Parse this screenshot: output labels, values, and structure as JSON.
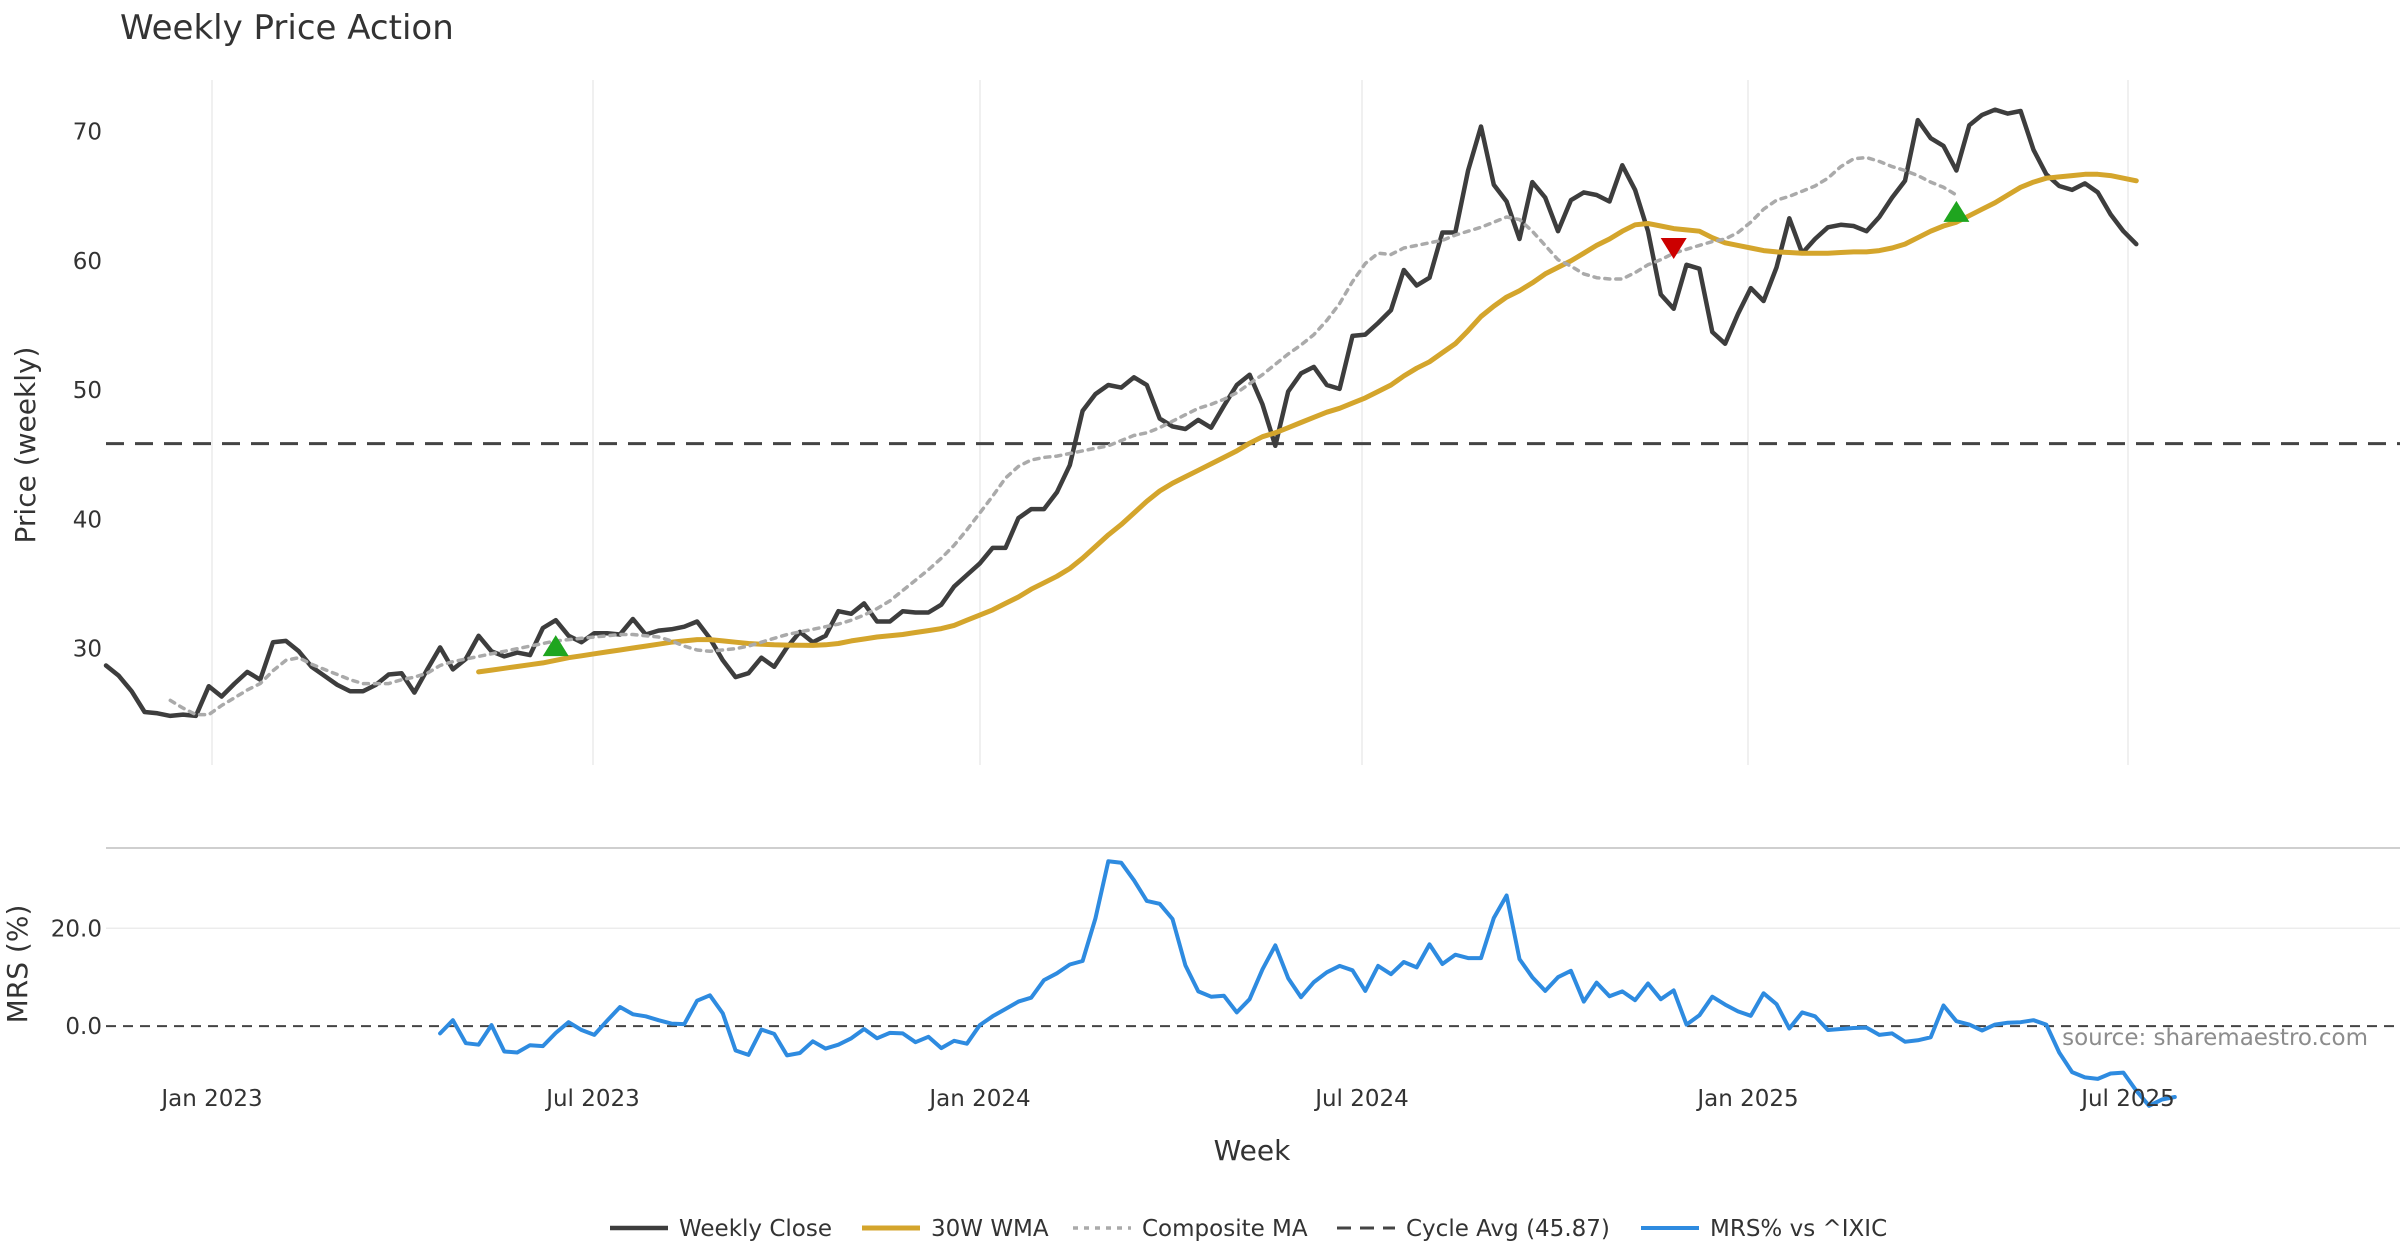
{
  "chart_data": {
    "type": "line",
    "title": "Weekly Price Action",
    "xlabel": "Week",
    "source": "source: sharemaestro.com",
    "x_ticks": [
      "Jan 2023",
      "Jul 2023",
      "Jan 2024",
      "Jul 2024",
      "Jan 2025",
      "Jul 2025"
    ],
    "price_panel": {
      "ylabel": "Price (weekly)",
      "ylim": [
        21,
        74
      ],
      "y_ticks": [
        30,
        40,
        50,
        60,
        70
      ],
      "cycle_avg": 45.87
    },
    "mrs_panel": {
      "ylabel": "MRS (%)",
      "ylim": [
        -10,
        36
      ],
      "y_ticks": [
        0.0,
        20.0
      ],
      "y_tick_labels": [
        "0.0",
        "20.0"
      ],
      "zero_line": 0
    },
    "series": [
      {
        "name": "Weekly Close",
        "color": "#3d3d3d",
        "start_week": 0,
        "values": [
          28.7,
          27.9,
          26.7,
          25.1,
          25,
          24.8,
          24.9,
          24.8,
          27.1,
          26.3,
          27.3,
          28.2,
          27.6,
          30.5,
          30.6,
          29.8,
          28.6,
          27.9,
          27.2,
          26.7,
          26.7,
          27.2,
          28.0,
          28.1,
          26.6,
          28.4,
          30.1,
          28.4,
          29.2,
          31.0,
          29.8,
          29.4,
          29.7,
          29.5,
          31.6,
          32.2,
          31.0,
          30.5,
          31.2,
          31.2,
          31.1,
          32.3,
          31.1,
          31.4,
          31.5,
          31.7,
          32.1,
          30.8,
          29.1,
          27.8,
          28.1,
          29.3,
          28.6,
          30.1,
          31.3,
          30.5,
          31.0,
          32.9,
          32.7,
          33.5,
          32.1,
          32.1,
          32.9,
          32.8,
          32.8,
          33.4,
          34.8,
          35.7,
          36.6,
          37.8,
          37.8,
          40.1,
          40.8,
          40.8,
          42.1,
          44.2,
          48.4,
          49.7,
          50.4,
          50.2,
          51.0,
          50.4,
          47.8,
          47.2,
          47.0,
          47.7,
          47.1,
          48.8,
          50.4,
          51.2,
          48.9,
          45.7,
          49.9,
          51.3,
          51.8,
          50.4,
          50.1,
          54.2,
          54.3,
          55.2,
          56.2,
          59.3,
          58.1,
          58.7,
          62.2,
          62.2,
          67.0,
          70.4,
          65.9,
          64.6,
          61.7,
          66.1,
          64.9,
          62.3,
          64.7,
          65.3,
          65.1,
          64.6,
          67.4,
          65.5,
          62.3,
          57.4,
          56.3,
          59.7,
          59.4,
          54.5,
          53.6,
          55.9,
          57.9,
          56.9,
          59.5,
          63.3,
          60.6,
          61.7,
          62.6,
          62.8,
          62.7,
          62.3,
          63.4,
          64.9,
          66.2,
          70.9,
          69.5,
          68.9,
          67.0,
          70.5,
          71.3,
          71.7,
          71.4,
          71.6,
          68.6,
          66.7,
          65.8,
          65.5,
          66.0,
          65.3,
          63.6,
          62.3,
          61.3
        ]
      },
      {
        "name": "30W WMA",
        "color": "#d4a52c",
        "start_week": 29,
        "values": [
          28.2,
          28.34,
          28.48,
          28.62,
          28.76,
          28.9,
          29.1,
          29.3,
          29.45,
          29.6,
          29.75,
          29.9,
          30.05,
          30.2,
          30.35,
          30.5,
          30.6,
          30.7,
          30.7,
          30.6,
          30.5,
          30.4,
          30.35,
          30.3,
          30.28,
          30.26,
          30.25,
          30.3,
          30.4,
          30.6,
          30.75,
          30.9,
          31.0,
          31.1,
          31.25,
          31.4,
          31.55,
          31.8,
          32.2,
          32.6,
          33.0,
          33.5,
          34.0,
          34.6,
          35.1,
          35.6,
          36.2,
          37.0,
          37.9,
          38.8,
          39.6,
          40.5,
          41.4,
          42.2,
          42.8,
          43.3,
          43.8,
          44.3,
          44.8,
          45.3,
          45.9,
          46.4,
          46.7,
          47.1,
          47.5,
          47.9,
          48.3,
          48.6,
          49.0,
          49.4,
          49.9,
          50.4,
          51.1,
          51.7,
          52.2,
          52.9,
          53.6,
          54.6,
          55.7,
          56.5,
          57.2,
          57.7,
          58.3,
          59.0,
          59.5,
          60.0,
          60.6,
          61.2,
          61.7,
          62.3,
          62.8,
          62.9,
          62.7,
          62.5,
          62.4,
          62.3,
          61.8,
          61.4,
          61.2,
          61.0,
          60.8,
          60.7,
          60.65,
          60.6,
          60.6,
          60.6,
          60.65,
          60.7,
          60.7,
          60.8,
          61.0,
          61.3,
          61.8,
          62.3,
          62.7,
          63.0,
          63.5,
          64.0,
          64.5,
          65.1,
          65.7,
          66.1,
          66.4,
          66.5,
          66.6,
          66.7,
          66.7,
          66.6,
          66.4,
          66.2
        ]
      },
      {
        "name": "Composite MA",
        "color": "#aaaaaa",
        "start_week": 5,
        "values": [
          26.0,
          25.4,
          24.9,
          24.9,
          25.6,
          26.2,
          26.8,
          27.3,
          28.3,
          29.1,
          29.3,
          28.8,
          28.4,
          28.0,
          27.6,
          27.3,
          27.3,
          27.3,
          27.6,
          27.8,
          28.1,
          28.7,
          29.0,
          29.2,
          29.4,
          29.6,
          29.8,
          30.0,
          30.2,
          30.4,
          30.6,
          30.7,
          30.8,
          30.9,
          31.0,
          31.1,
          31.1,
          31.0,
          30.9,
          30.6,
          30.2,
          29.9,
          29.8,
          29.9,
          30.0,
          30.2,
          30.5,
          30.8,
          31.1,
          31.3,
          31.5,
          31.7,
          31.9,
          32.2,
          32.6,
          33.1,
          33.7,
          34.5,
          35.3,
          36.1,
          37.0,
          38.0,
          39.2,
          40.5,
          41.8,
          43.2,
          44.1,
          44.6,
          44.8,
          44.9,
          45.1,
          45.3,
          45.5,
          45.7,
          46.1,
          46.5,
          46.7,
          47.1,
          47.6,
          48.1,
          48.6,
          48.9,
          49.3,
          49.8,
          50.5,
          51.2,
          52.0,
          52.8,
          53.5,
          54.3,
          55.4,
          56.7,
          58.4,
          59.8,
          60.6,
          60.5,
          61.0,
          61.2,
          61.4,
          61.6,
          62.0,
          62.3,
          62.6,
          63.0,
          63.4,
          63.2,
          62.3,
          61.2,
          60.1,
          59.6,
          59.0,
          58.7,
          58.6,
          58.6,
          59.1,
          59.7,
          60.1,
          60.6,
          60.9,
          61.2,
          61.5,
          61.7,
          62.2,
          63.0,
          64.0,
          64.7,
          65.0,
          65.4,
          65.8,
          66.4,
          67.3,
          67.9,
          68.0,
          67.7,
          67.3,
          67.0,
          66.6,
          66.1,
          65.7,
          65.1
        ]
      },
      {
        "name": "Cycle Avg (45.87)",
        "color": "#444444",
        "value": 45.87
      },
      {
        "name": "MRS% vs ^IXIC",
        "color": "#2e8be0",
        "start_week": 26,
        "values": [
          -1.5,
          1.2,
          -3.5,
          -3.8,
          0.2,
          -5.2,
          -5.4,
          -3.9,
          -4.1,
          -1.4,
          0.8,
          -0.8,
          -1.8,
          1.1,
          3.9,
          2.4,
          2.0,
          1.2,
          0.5,
          0.4,
          5.2,
          6.3,
          2.6,
          -5.0,
          -5.9,
          -0.7,
          -1.6,
          -6.0,
          -5.5,
          -3.1,
          -4.6,
          -3.8,
          -2.5,
          -0.6,
          -2.5,
          -1.4,
          -1.5,
          -3.3,
          -2.2,
          -4.5,
          -3.0,
          -3.6,
          0.2,
          2.0,
          3.5,
          5.0,
          5.8,
          9.4,
          10.8,
          12.6,
          13.3,
          22.0,
          33.7,
          33.4,
          29.8,
          25.6,
          25.0,
          21.9,
          12.4,
          7.1,
          6.0,
          6.2,
          2.8,
          5.5,
          11.6,
          16.5,
          9.8,
          5.9,
          9.0,
          11.0,
          12.3,
          11.4,
          7.2,
          12.3,
          10.6,
          13.1,
          12.0,
          16.7,
          12.7,
          14.6,
          13.9,
          13.9,
          22.1,
          26.7,
          13.7,
          10.0,
          7.2,
          10.0,
          11.3,
          5.0,
          8.9,
          6.1,
          7.1,
          5.3,
          8.7,
          5.5,
          7.3,
          0.3,
          2.2,
          6.0,
          4.4,
          3.0,
          2.1,
          6.7,
          4.5,
          -0.5,
          2.8,
          2.0,
          -0.8,
          -0.6,
          -0.4,
          -0.3,
          -1.8,
          -1.5,
          -3.2,
          -2.9,
          -2.3,
          4.2,
          1.0,
          0.3,
          -0.9,
          0.3,
          0.7,
          0.8,
          1.2,
          0.3,
          -5.4,
          -9.4,
          -10.5,
          -10.8,
          -9.7,
          -9.5,
          -13.2,
          -16.3,
          -15.0,
          -14.5
        ]
      }
    ],
    "signals": [
      {
        "type": "buy",
        "week": 35,
        "value": 30.2,
        "color": "#1fa51f"
      },
      {
        "type": "sell",
        "week": 122,
        "value": 61.0,
        "color": "#cc0000"
      },
      {
        "type": "buy",
        "week": 144,
        "value": 63.8,
        "color": "#1fa51f"
      }
    ],
    "legend": [
      "Weekly Close",
      "30W WMA",
      "Composite MA",
      "Cycle Avg (45.87)",
      "MRS% vs ^IXIC"
    ]
  }
}
